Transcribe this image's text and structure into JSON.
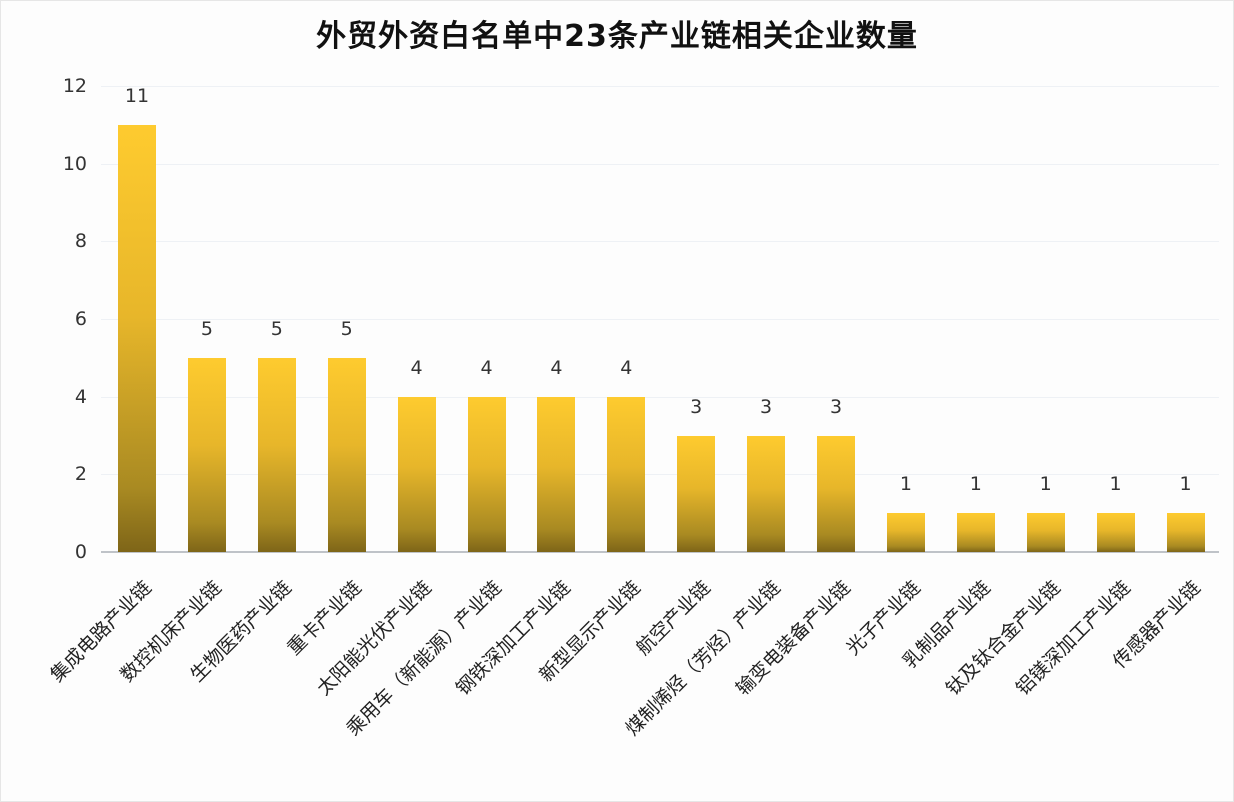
{
  "chart_data": {
    "type": "bar",
    "title": "外贸外资白名单中23条产业链相关企业数量",
    "xlabel": "",
    "ylabel": "",
    "ylim": [
      0,
      12
    ],
    "yticks": [
      0,
      2,
      4,
      6,
      8,
      10,
      12
    ],
    "grid": true,
    "legend": null,
    "categories": [
      "集成电路产业链",
      "数控机床产业链",
      "生物医药产业链",
      "重卡产业链",
      "太阳能光伏产业链",
      "乘用车（新能源）产业链",
      "钢铁深加工产业链",
      "新型显示产业链",
      "航空产业链",
      "煤制烯烃（芳烃）产业链",
      "输变电装备产业链",
      "光子产业链",
      "乳制品产业链",
      "钛及钛合金产业链",
      "铝镁深加工产业链",
      "传感器产业链"
    ],
    "values": [
      11,
      5,
      5,
      5,
      4,
      4,
      4,
      4,
      3,
      3,
      3,
      1,
      1,
      1,
      1,
      1
    ],
    "colors": {
      "bar_top": "#fecb2f",
      "bar_bottom": "#7e6518",
      "grid": "#eef1f5",
      "axis": "#bfc3c8"
    }
  }
}
